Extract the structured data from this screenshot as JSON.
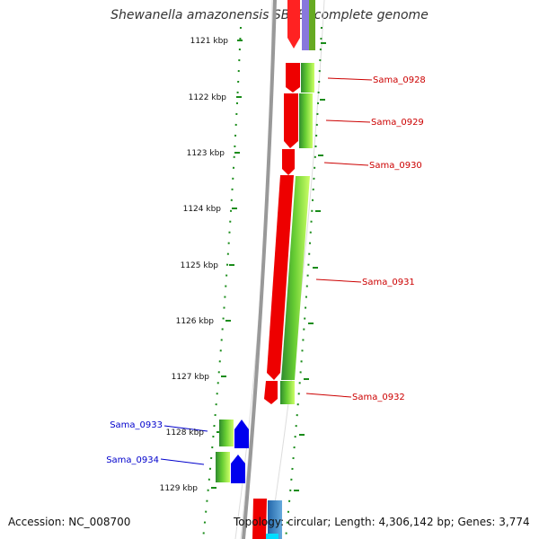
{
  "title": "Shewanella amazonensis SB2B, complete genome",
  "footer": {
    "accession": "Accession: NC_008700",
    "topology": "Topology: circular; Length: 4,306,142 bp; Genes: 3,774"
  },
  "scale_labels": [
    "1121 kbp",
    "1122 kbp",
    "1123 kbp",
    "1124 kbp",
    "1125 kbp",
    "1126 kbp",
    "1127 kbp",
    "1128 kbp",
    "1129 kbp"
  ],
  "gene_labels": {
    "right": [
      "Sama_0928",
      "Sama_0929",
      "Sama_0930",
      "Sama_0931",
      "Sama_0932"
    ],
    "left": [
      "Sama_0933",
      "Sama_0934"
    ]
  },
  "colors": {
    "label_right": "#cc0000",
    "label_left": "#0000cc",
    "tick": "#1a8c1a",
    "backbone": "#999999",
    "cds_forward": "#ff0000",
    "cds_reverse": "#0000ee",
    "track_green_dark": "#2e8b2e",
    "track_green_light": "#ccff66"
  }
}
